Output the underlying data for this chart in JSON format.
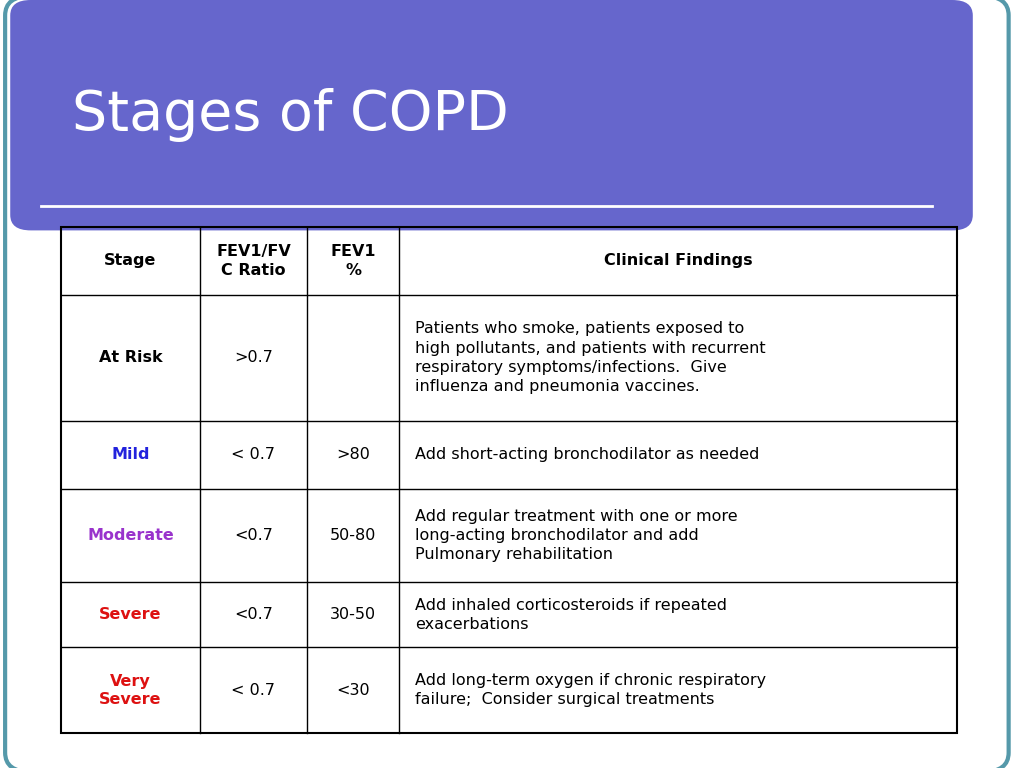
{
  "title": "Stages of COPD",
  "title_color": "#ffffff",
  "title_bg_color": "#6666cc",
  "header_row": [
    "Stage",
    "FEV1/FV\nC Ratio",
    "FEV1\n%",
    "Clinical Findings"
  ],
  "rows": [
    {
      "stage": "At Risk",
      "stage_color": "#000000",
      "fev1fvc": ">0.7",
      "fev1pct": "",
      "findings": "Patients who smoke, patients exposed to\nhigh pollutants, and patients with recurrent\nrespiratory symptoms/infections.  Give\ninfluenza and pneumonia vaccines."
    },
    {
      "stage": "Mild",
      "stage_color": "#2222dd",
      "fev1fvc": "< 0.7",
      "fev1pct": ">80",
      "findings": "Add short-acting bronchodilator as needed"
    },
    {
      "stage": "Moderate",
      "stage_color": "#9933cc",
      "fev1fvc": "<0.7",
      "fev1pct": "50-80",
      "findings": "Add regular treatment with one or more\nlong-acting bronchodilator and add\nPulmonary rehabilitation"
    },
    {
      "stage": "Severe",
      "stage_color": "#dd1111",
      "fev1fvc": "<0.7",
      "fev1pct": "30-50",
      "findings": "Add inhaled corticosteroids if repeated\nexacerbations"
    },
    {
      "stage": "Very\nSevere",
      "stage_color": "#dd1111",
      "fev1fvc": "< 0.7",
      "fev1pct": "<30",
      "findings": "Add long-term oxygen if chronic respiratory\nfailure;  Consider surgical treatments"
    }
  ],
  "outer_border_color": "#5599aa",
  "table_border_color": "#000000",
  "slide_bg": "#ffffff",
  "title_fontsize": 40,
  "body_fontsize": 11.5
}
